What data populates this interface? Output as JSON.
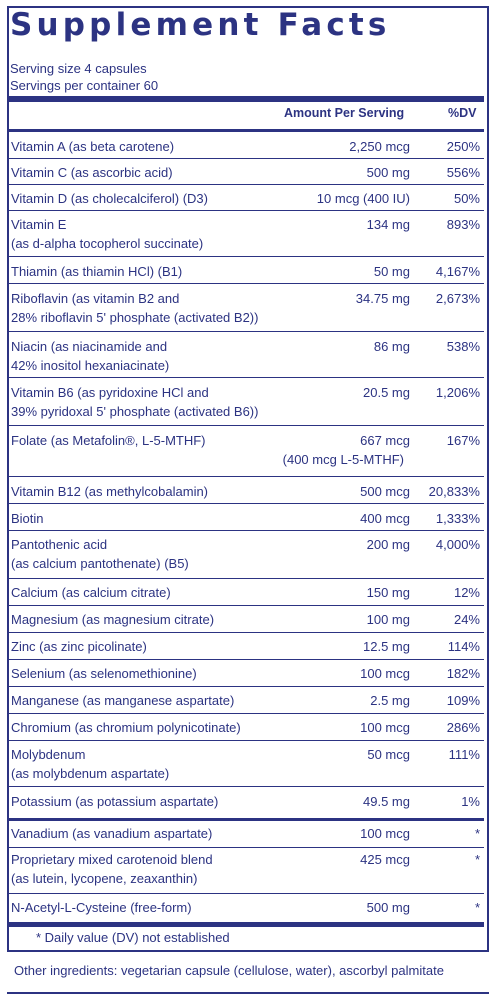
{
  "title": "Supplement Facts",
  "serving_size": "Serving size 4 capsules",
  "servings_per_container": "Servings per container 60",
  "header": {
    "amount": "Amount Per Serving",
    "dv": "%DV"
  },
  "rows": [
    {
      "name": "Vitamin A (as beta carotene)",
      "amount": "2,250 mcg",
      "dv": "250%"
    },
    {
      "name": "Vitamin C (as ascorbic acid)",
      "amount": "500 mg",
      "dv": "556%"
    },
    {
      "name": "Vitamin D (as cholecalciferol) (D3)",
      "amount": "10 mcg (400 IU)",
      "dv": "50%"
    },
    {
      "name": "Vitamin E",
      "name2": "(as d-alpha tocopherol succinate)",
      "amount": "134 mg",
      "dv": "893%"
    },
    {
      "name": "Thiamin (as thiamin HCl) (B1)",
      "amount": "50 mg",
      "dv": "4,167%"
    },
    {
      "name": "Riboflavin (as vitamin B2 and",
      "name2": "28% riboflavin 5' phosphate (activated B2))",
      "amount": "34.75 mg",
      "dv": "2,673%"
    },
    {
      "name": "Niacin (as niacinamide and",
      "name2": "42% inositol hexaniacinate)",
      "amount": "86 mg",
      "dv": "538%"
    },
    {
      "name": "Vitamin B6 (as pyridoxine HCl and",
      "name2": "39% pyridoxal 5' phosphate (activated B6))",
      "amount": "20.5 mg",
      "dv": "1,206%"
    },
    {
      "name": "Folate (as Metafolin®, L-5-MTHF)",
      "amount": "667 mcg",
      "amount2": "(400 mcg L-5-MTHF)",
      "dv": "167%"
    },
    {
      "name": "Vitamin B12 (as methylcobalamin)",
      "amount": "500 mcg",
      "dv": "20,833%"
    },
    {
      "name": "Biotin",
      "amount": "400 mcg",
      "dv": "1,333%"
    },
    {
      "name": "Pantothenic acid",
      "name2": "(as calcium pantothenate) (B5)",
      "amount": "200 mg",
      "dv": "4,000%"
    },
    {
      "name": "Calcium (as calcium citrate)",
      "amount": "150 mg",
      "dv": "12%"
    },
    {
      "name": "Magnesium (as magnesium citrate)",
      "amount": "100 mg",
      "dv": "24%"
    },
    {
      "name": "Zinc (as zinc picolinate)",
      "amount": "12.5 mg",
      "dv": "114%"
    },
    {
      "name": "Selenium (as selenomethionine)",
      "amount": "100 mcg",
      "dv": "182%"
    },
    {
      "name": "Manganese (as manganese aspartate)",
      "amount": "2.5 mg",
      "dv": "109%"
    },
    {
      "name": "Chromium (as chromium polynicotinate)",
      "amount": "100 mcg",
      "dv": "286%"
    },
    {
      "name": "Molybdenum",
      "name2": "(as molybdenum aspartate)",
      "amount": "50 mcg",
      "dv": "111%"
    },
    {
      "name": "Potassium (as potassium aspartate)",
      "amount": "49.5 mg",
      "dv": "1%"
    },
    {
      "name": "Vanadium (as vanadium aspartate)",
      "amount": "100 mcg",
      "dv": "*"
    },
    {
      "name": "Proprietary mixed carotenoid blend",
      "name2": "(as lutein, lycopene, zeaxanthin)",
      "amount": "425 mcg",
      "dv": "*"
    },
    {
      "name": "N-Acetyl-L-Cysteine (free-form)",
      "amount": "500 mg",
      "dv": "*"
    }
  ],
  "footnote": "* Daily value (DV) not established",
  "other_ingredients": "Other ingredients: vegetarian capsule (cellulose, water), ascorbyl palmitate"
}
